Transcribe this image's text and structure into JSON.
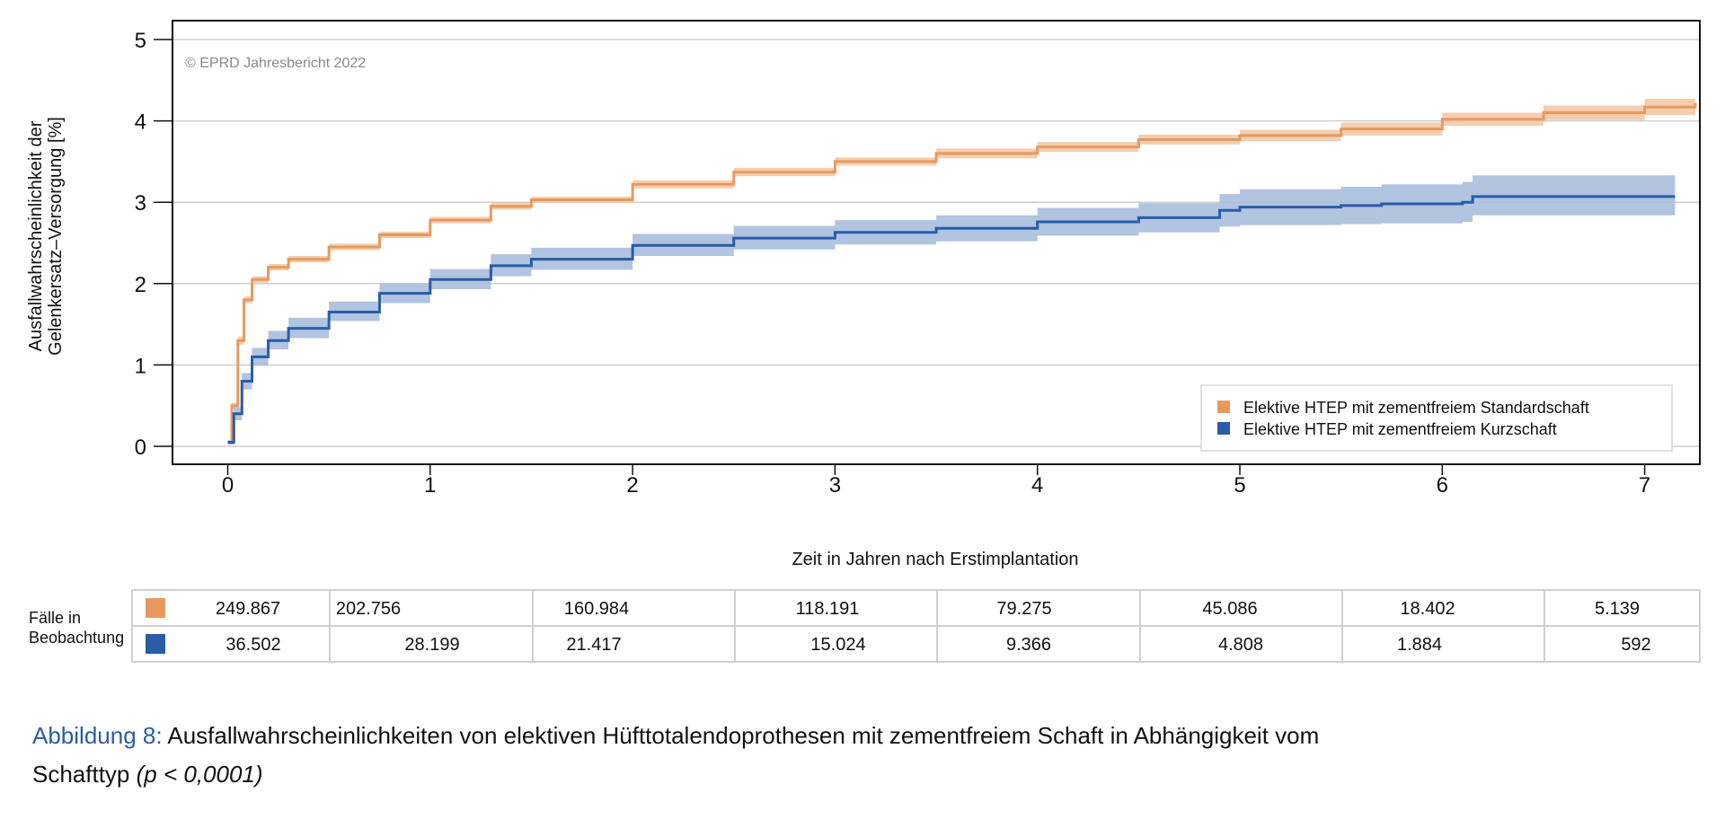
{
  "chart_data": {
    "type": "line",
    "watermark": "© EPRD Jahresbericht 2022",
    "xlabel": "Zeit in Jahren nach Erstimplantation",
    "ylabel_lines": [
      "Ausfallwahrscheinlichkeit der",
      "Gelenkersatz–Versorgung [%]"
    ],
    "xlim": [
      -0.28,
      7.26
    ],
    "ylim": [
      -0.22,
      5.25
    ],
    "xticks": [
      "0",
      "1",
      "2",
      "3",
      "4",
      "5",
      "6",
      "7"
    ],
    "yticks": [
      "0",
      "1",
      "2",
      "3",
      "4",
      "5"
    ],
    "grid": "horizontal",
    "legend_position": "bottom-right",
    "series": [
      {
        "name": "Elektive HTEP mit zementfreiem Standardschaft",
        "color": "#E89A5E",
        "band_color": "#F3C9A6",
        "x": [
          0,
          0.02,
          0.05,
          0.08,
          0.12,
          0.2,
          0.3,
          0.5,
          0.75,
          1,
          1.3,
          1.5,
          2,
          2.5,
          3,
          3.5,
          4,
          4.5,
          5,
          5.5,
          6,
          6.5,
          7,
          7.25
        ],
        "y": [
          0.05,
          0.5,
          1.3,
          1.8,
          2.05,
          2.2,
          2.3,
          2.45,
          2.6,
          2.78,
          2.95,
          3.03,
          3.22,
          3.37,
          3.5,
          3.6,
          3.68,
          3.77,
          3.82,
          3.9,
          4.02,
          4.1,
          4.17,
          4.22
        ],
        "lower": [
          0.03,
          0.46,
          1.25,
          1.76,
          2.01,
          2.16,
          2.26,
          2.41,
          2.56,
          2.74,
          2.91,
          2.99,
          3.17,
          3.32,
          3.45,
          3.54,
          3.62,
          3.71,
          3.75,
          3.82,
          3.94,
          4.01,
          4.07,
          4.1
        ],
        "upper": [
          0.07,
          0.54,
          1.35,
          1.84,
          2.09,
          2.24,
          2.34,
          2.49,
          2.64,
          2.82,
          2.99,
          3.07,
          3.27,
          3.42,
          3.55,
          3.66,
          3.74,
          3.83,
          3.89,
          3.98,
          4.1,
          4.19,
          4.27,
          4.35
        ]
      },
      {
        "name": "Elektive HTEP mit zementfreiem Kurzschaft",
        "color": "#2A5CA8",
        "band_color": "#A8BEDD",
        "x": [
          0,
          0.03,
          0.07,
          0.12,
          0.2,
          0.3,
          0.5,
          0.75,
          1,
          1.3,
          1.5,
          2,
          2.5,
          3,
          3.5,
          4,
          4.5,
          4.9,
          5,
          5.5,
          5.7,
          6.1,
          6.15,
          7.15
        ],
        "y": [
          0.05,
          0.4,
          0.8,
          1.1,
          1.3,
          1.45,
          1.65,
          1.88,
          2.05,
          2.22,
          2.3,
          2.47,
          2.56,
          2.63,
          2.68,
          2.76,
          2.81,
          2.9,
          2.94,
          2.96,
          2.98,
          3.0,
          3.07,
          3.07
        ],
        "lower": [
          0.02,
          0.32,
          0.7,
          0.99,
          1.19,
          1.33,
          1.54,
          1.76,
          1.93,
          2.09,
          2.17,
          2.34,
          2.42,
          2.48,
          2.52,
          2.59,
          2.63,
          2.7,
          2.72,
          2.73,
          2.74,
          2.76,
          2.84,
          2.84
        ],
        "upper": [
          0.08,
          0.48,
          0.9,
          1.21,
          1.42,
          1.58,
          1.78,
          2.0,
          2.18,
          2.36,
          2.44,
          2.61,
          2.71,
          2.78,
          2.84,
          2.93,
          2.99,
          3.1,
          3.16,
          3.19,
          3.22,
          3.25,
          3.33,
          3.33
        ]
      }
    ]
  },
  "risk_table": {
    "label_lines": [
      "Fälle in",
      "Beobachtung"
    ],
    "rows": [
      {
        "color": "#E89A5E",
        "values": [
          "249.867",
          "202.756",
          "160.984",
          "118.191",
          "79.275",
          "45.086",
          "18.402",
          "5.139"
        ]
      },
      {
        "color": "#2A5CA8",
        "values": [
          "36.502",
          "28.199",
          "21.417",
          "15.024",
          "9.366",
          "4.808",
          "1.884",
          "592"
        ]
      }
    ]
  },
  "caption": {
    "prefix": "Abbildung 8:",
    "prefix_color": "#2A5CA8",
    "line1": " Ausfallwahrscheinlichkeiten von elektiven Hüfttotalendoprothesen mit zementfreiem Schaft in Abhängigkeit vom",
    "line2": "Schafttyp ",
    "pvalue": "(p < 0,0001)"
  }
}
